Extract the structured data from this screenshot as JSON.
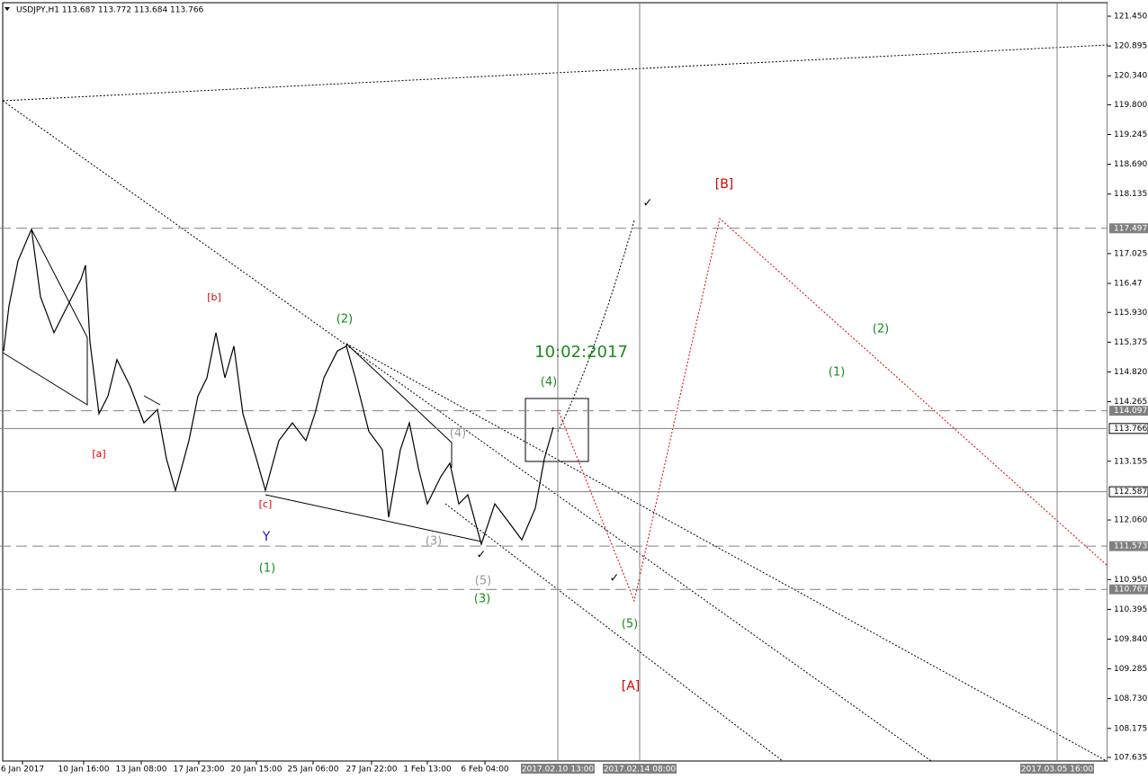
{
  "chart_data": {
    "type": "line",
    "title": "USDJPY,H1  113.687 113.772 113.684 113.766",
    "color": "#000000",
    "x": [
      4,
      10,
      20,
      35,
      45,
      60,
      75,
      90,
      95,
      100,
      110,
      120,
      130,
      145,
      160,
      175,
      185,
      195,
      210,
      220,
      230,
      240,
      250,
      260,
      270,
      285,
      295,
      310,
      325,
      340,
      350,
      360,
      375,
      385,
      395,
      410,
      425,
      432,
      445,
      455,
      465,
      475,
      490,
      500,
      510,
      520,
      535,
      550,
      565,
      580,
      595,
      605,
      615
    ],
    "values": [
      115.21,
      116.05,
      116.89,
      117.48,
      116.22,
      115.55,
      116.05,
      116.55,
      116.81,
      115.38,
      114.04,
      114.37,
      115.05,
      114.54,
      113.87,
      114.12,
      113.2,
      112.61,
      113.54,
      114.37,
      114.71,
      115.55,
      114.71,
      115.3,
      114.04,
      113.2,
      112.61,
      113.54,
      113.87,
      113.54,
      114.04,
      114.71,
      115.21,
      115.3,
      114.71,
      113.71,
      113.37,
      112.11,
      113.37,
      113.87,
      113.03,
      112.36,
      112.87,
      113.12,
      112.36,
      112.53,
      111.61,
      112.36,
      112.03,
      111.69,
      112.28,
      113.2,
      113.79
    ],
    "xlim": [
      0,
      1230
    ],
    "ylim": [
      107.568,
      121.685
    ],
    "yticks": [
      {
        "value": 121.45,
        "label": "121.450"
      },
      120.895,
      {
        "value": 120.34,
        "label": "120.340"
      },
      {
        "value": 119.8,
        "label": "119.800"
      },
      119.245,
      {
        "value": 118.69,
        "label": "118.690"
      },
      118.135,
      117.025,
      116.47,
      {
        "value": 115.93,
        "label": "115.930"
      },
      115.375,
      {
        "value": 114.82,
        "label": "114.820"
      },
      114.265,
      113.155,
      {
        "value": 112.06,
        "label": "112.060"
      },
      {
        "value": 110.95,
        "label": "110.950"
      },
      110.395,
      {
        "value": 109.84,
        "label": "109.840"
      },
      109.285,
      {
        "value": 108.73,
        "label": "108.730"
      },
      108.175,
      107.635
    ],
    "xticks": [
      {
        "value": 25,
        "label": "6 Jan 2017"
      },
      {
        "value": 93,
        "label": "10 Jan 16:00"
      },
      {
        "value": 157,
        "label": "13 Jan 08:00"
      },
      {
        "value": 221,
        "label": "17 Jan 23:00"
      },
      {
        "value": 285,
        "label": "20 Jan 15:00"
      },
      {
        "value": 348,
        "label": "25 Jan 06:00"
      },
      {
        "value": 413,
        "label": "27 Jan 22:00"
      },
      {
        "value": 475,
        "label": "1 Feb 13:00"
      },
      {
        "value": 539,
        "label": "6 Feb 04:00"
      }
    ],
    "xmarkers": [
      {
        "value": 620,
        "label": "2017.02.10 13:00"
      },
      {
        "value": 711,
        "label": "2017.02.14 08:00"
      },
      {
        "value": 1175,
        "label": "2017.03.05 16:00"
      }
    ],
    "dashed_levels": [
      117.497,
      114.097,
      111.573,
      110.767
    ],
    "solid_levels": [
      113.766,
      112.587
    ],
    "annotations": [
      {
        "text": "[b]",
        "color": "#dd0000"
      },
      {
        "text": "(2)",
        "color": "#1a8a1a"
      },
      {
        "text": "10:02:2017",
        "color": "#1a8a1a"
      },
      {
        "text": "(4)",
        "color": "#1a8a1a"
      },
      {
        "text": "(4)",
        "color": "#999999"
      },
      {
        "text": "[a]",
        "color": "#dd0000"
      },
      {
        "text": "[c]",
        "color": "#dd0000"
      },
      {
        "text": "Y",
        "color": "#1a1acc"
      },
      {
        "text": "(1)",
        "color": "#1a8a1a"
      },
      {
        "text": "(3)",
        "color": "#999999"
      },
      {
        "text": "(5)",
        "color": "#999999"
      },
      {
        "text": "(3)",
        "color": "#1a8a1a"
      },
      {
        "text": "(5)",
        "color": "#1a8a1a"
      },
      {
        "text": "[A]",
        "color": "#dd0000"
      },
      {
        "text": "[B]",
        "color": "#dd0000"
      },
      {
        "text": "(2)",
        "color": "#1a8a1a"
      },
      {
        "text": "(1)",
        "color": "#1a8a1a"
      },
      {
        "text": "✓",
        "color": "#000000"
      },
      {
        "text": "✓",
        "color": "#000000"
      },
      {
        "text": "✓",
        "color": "#000000"
      }
    ]
  }
}
